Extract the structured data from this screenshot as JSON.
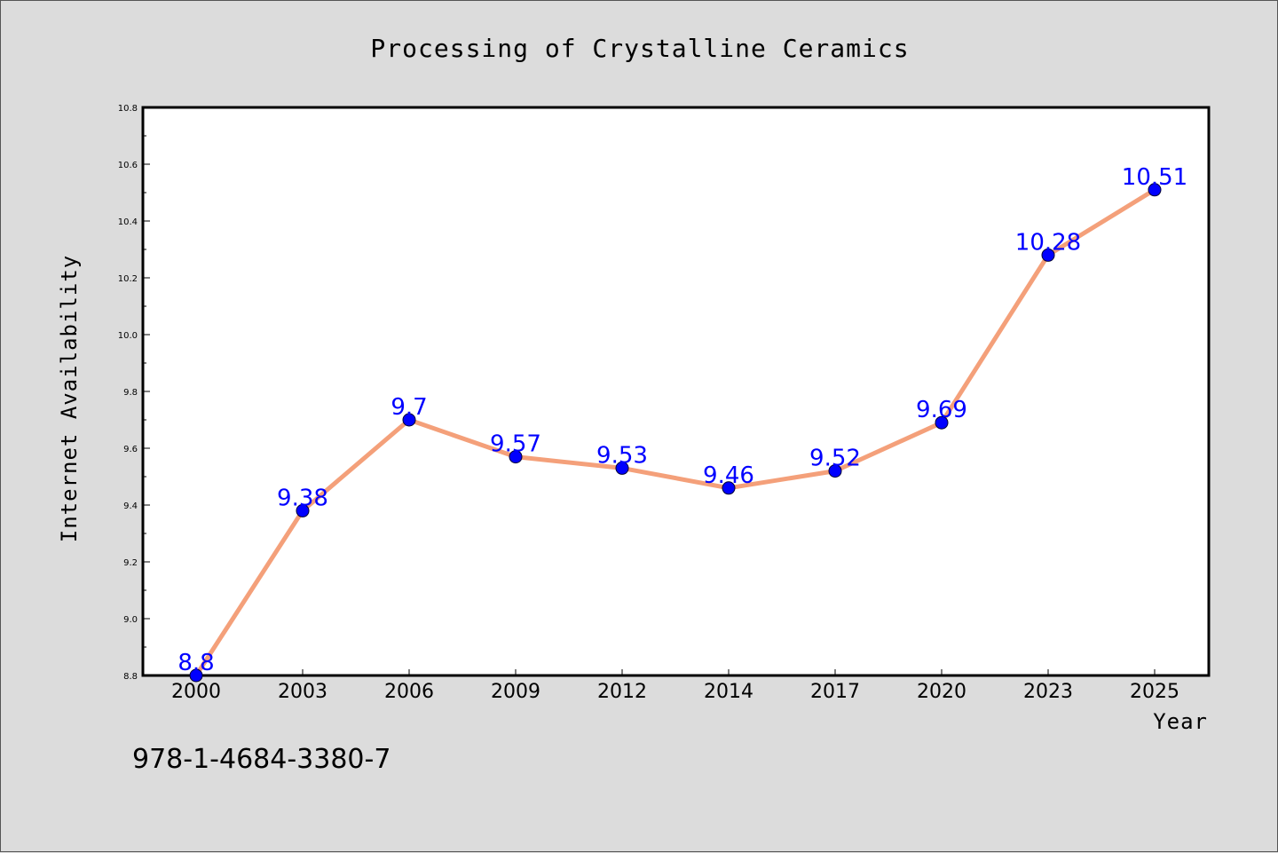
{
  "chart_data": {
    "type": "line",
    "title": "Processing of Crystalline Ceramics",
    "xlabel": "Year",
    "ylabel": "Internet Availability",
    "categories": [
      "2000",
      "2003",
      "2006",
      "2009",
      "2012",
      "2014",
      "2017",
      "2020",
      "2023",
      "2025"
    ],
    "series": [
      {
        "values": [
          8.8,
          9.38,
          9.7,
          9.57,
          9.53,
          9.46,
          9.52,
          9.69,
          10.28,
          10.51
        ],
        "line_color": "#f4a07a",
        "marker_color": "#0000ff",
        "label_color": "#0000ff"
      }
    ],
    "ylim": [
      8.8,
      10.8
    ],
    "yticks": [
      "8.8",
      "9.0",
      "9.2",
      "9.4",
      "9.6",
      "9.8",
      "10.0",
      "10.2",
      "10.4",
      "10.6",
      "10.8"
    ],
    "grid": false,
    "legend": "none"
  },
  "annotation": {
    "isbn": "978-1-4684-3380-7"
  }
}
